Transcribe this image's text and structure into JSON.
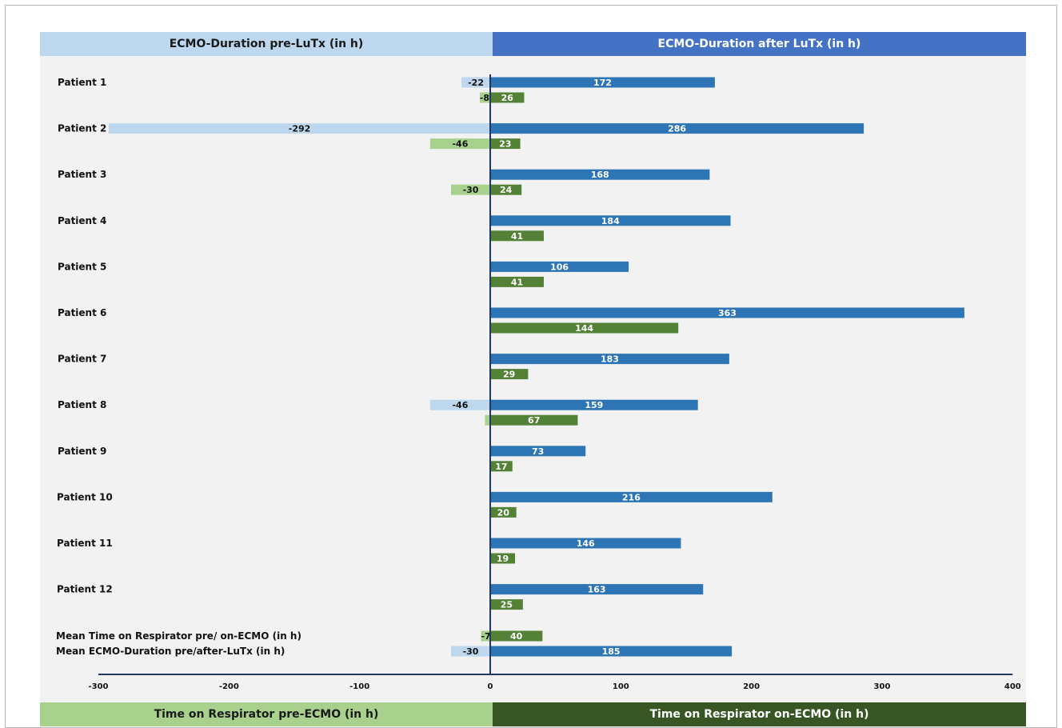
{
  "headers": {
    "top_left": "ECMO-Duration pre-LuTx (in h)",
    "top_right": "ECMO-Duration after LuTx (in h)",
    "bottom_left": "Time on Respirator pre-ECMO  (in h)",
    "bottom_right": "Time on Respirator on-ECMO (in h)"
  },
  "colors": {
    "ecmo_pre": "#bdd7ee",
    "ecmo_after": "#2e75b6",
    "resp_pre": "#a9d18e",
    "resp_on": "#538135",
    "axis": "#1f3864",
    "background": "#f2f2f2"
  },
  "chart_data": {
    "type": "bar",
    "orientation": "horizontal",
    "xlim": [
      -300,
      400
    ],
    "x_ticks": [
      -300,
      -200,
      -100,
      0,
      100,
      200,
      300,
      400
    ],
    "x_tick_labels": [
      "-300",
      "-200",
      "-100",
      "0",
      "100",
      "200",
      "300",
      "400"
    ],
    "grid": false,
    "rows": [
      {
        "label": "Patient 1",
        "ecmo_pre": -22,
        "ecmo_after": 172,
        "resp_pre": -8,
        "resp_on": 26
      },
      {
        "label": "Patient 2",
        "ecmo_pre": -292,
        "ecmo_after": 286,
        "resp_pre": -46,
        "resp_on": 23
      },
      {
        "label": "Patient 3",
        "ecmo_pre": 0,
        "ecmo_after": 168,
        "resp_pre": -30,
        "resp_on": 24
      },
      {
        "label": "Patient 4",
        "ecmo_pre": 0,
        "ecmo_after": 184,
        "resp_pre": 0,
        "resp_on": 41
      },
      {
        "label": "Patient 5",
        "ecmo_pre": 0,
        "ecmo_after": 106,
        "resp_pre": 0,
        "resp_on": 41
      },
      {
        "label": "Patient 6",
        "ecmo_pre": 0,
        "ecmo_after": 363,
        "resp_pre": 0,
        "resp_on": 144
      },
      {
        "label": "Patient 7",
        "ecmo_pre": 0,
        "ecmo_after": 183,
        "resp_pre": 0,
        "resp_on": 29
      },
      {
        "label": "Patient 8",
        "ecmo_pre": -46,
        "ecmo_after": 159,
        "resp_pre": -4,
        "resp_on": 67
      },
      {
        "label": "Patient 9",
        "ecmo_pre": 0,
        "ecmo_after": 73,
        "resp_pre": 0,
        "resp_on": 17
      },
      {
        "label": "Patient 10",
        "ecmo_pre": 0,
        "ecmo_after": 216,
        "resp_pre": 0,
        "resp_on": 20
      },
      {
        "label": "Patient 11",
        "ecmo_pre": 0,
        "ecmo_after": 146,
        "resp_pre": 0,
        "resp_on": 19
      },
      {
        "label": "Patient 12",
        "ecmo_pre": 0,
        "ecmo_after": 163,
        "resp_pre": 0,
        "resp_on": 25
      }
    ],
    "mean_rows": [
      {
        "label": "Mean Time on Respirator pre/ on-ECMO (in h)",
        "series": "respirator",
        "pre": -7,
        "post": 40
      },
      {
        "label": "Mean ECMO-Duration pre/after-LuTx (in h)",
        "series": "ecmo",
        "pre": -30,
        "post": 185
      }
    ]
  }
}
